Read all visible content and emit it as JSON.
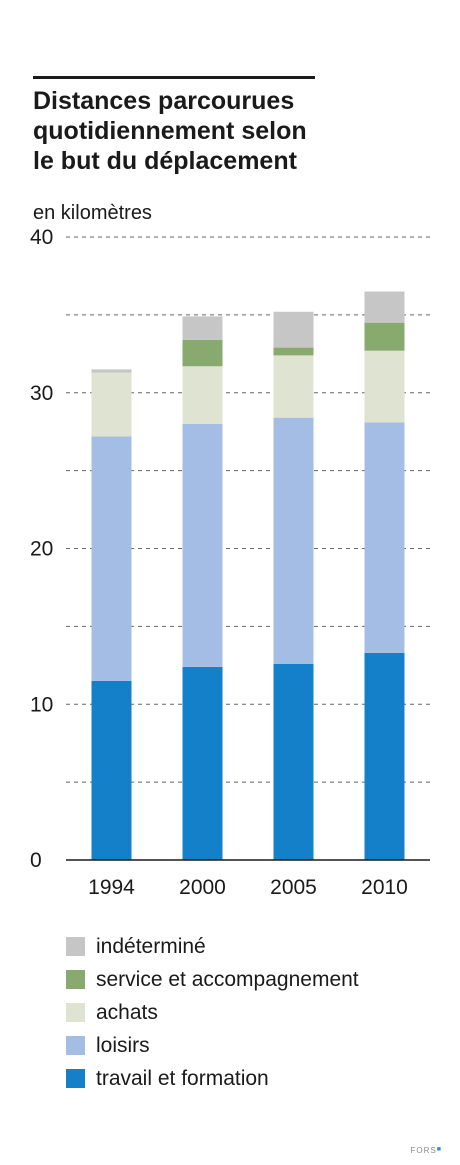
{
  "header": {
    "title_lines": [
      "Distances parcourues",
      "quotidiennement selon",
      "le but du déplacement"
    ],
    "unit_label": "en kilomètres"
  },
  "source": {
    "label": "FORS"
  },
  "colors": {
    "indetermine": "#c6c6c6",
    "service": "#89aa6f",
    "achats": "#dfe3d1",
    "loisirs": "#a4bde4",
    "travail": "#1480c9"
  },
  "chart_data": {
    "type": "bar",
    "stacked": true,
    "title": "Distances parcourues quotidiennement selon le but du déplacement",
    "ylabel": "en kilomètres",
    "xlabel": "",
    "categories": [
      "1994",
      "2000",
      "2005",
      "2010"
    ],
    "series": [
      {
        "name": "travail et formation",
        "color": "#1480c9",
        "values": [
          11.5,
          12.4,
          12.6,
          13.3
        ]
      },
      {
        "name": "loisirs",
        "color": "#a4bde4",
        "values": [
          15.7,
          15.6,
          15.8,
          14.8
        ]
      },
      {
        "name": "achats",
        "color": "#dfe3d1",
        "values": [
          4.1,
          3.7,
          4.0,
          4.6
        ]
      },
      {
        "name": "service et accompagnement",
        "color": "#89aa6f",
        "values": [
          0.0,
          1.7,
          0.5,
          1.8
        ]
      },
      {
        "name": "indéterminé",
        "color": "#c6c6c6",
        "values": [
          0.2,
          1.5,
          2.3,
          2.0
        ]
      }
    ],
    "ylim": [
      0,
      40
    ],
    "yticks": [
      0,
      10,
      20,
      30,
      40
    ],
    "grid": true,
    "legend": "bottom"
  }
}
